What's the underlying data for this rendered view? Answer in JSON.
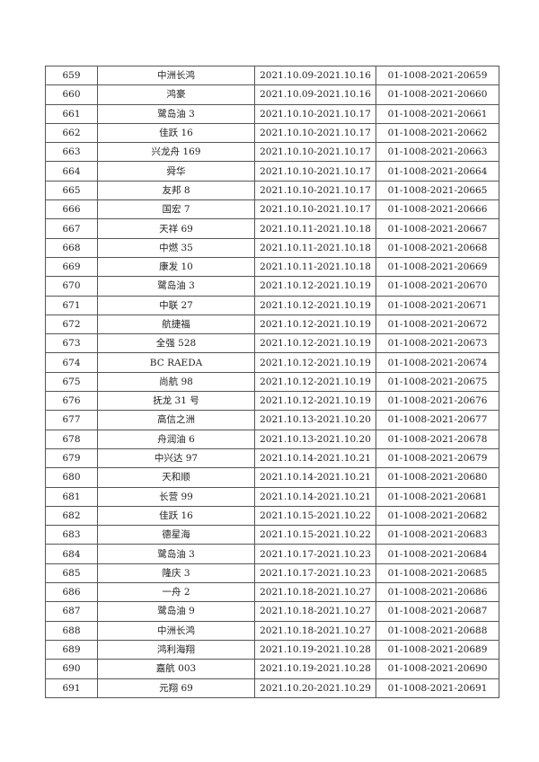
{
  "table": {
    "rows": [
      [
        "659",
        "中洲长鸿",
        "2021.10.09-2021.10.16",
        "01-1008-2021-20659"
      ],
      [
        "660",
        "鸿豪",
        "2021.10.09-2021.10.16",
        "01-1008-2021-20660"
      ],
      [
        "661",
        "鹭岛油 3",
        "2021.10.10-2021.10.17",
        "01-1008-2021-20661"
      ],
      [
        "662",
        "佳跃 16",
        "2021.10.10-2021.10.17",
        "01-1008-2021-20662"
      ],
      [
        "663",
        "兴龙舟 169",
        "2021.10.10-2021.10.17",
        "01-1008-2021-20663"
      ],
      [
        "664",
        "舜华",
        "2021.10.10-2021.10.17",
        "01-1008-2021-20664"
      ],
      [
        "665",
        "友邦 8",
        "2021.10.10-2021.10.17",
        "01-1008-2021-20665"
      ],
      [
        "666",
        "国宏 7",
        "2021.10.10-2021.10.17",
        "01-1008-2021-20666"
      ],
      [
        "667",
        "天祥 69",
        "2021.10.11-2021.10.18",
        "01-1008-2021-20667"
      ],
      [
        "668",
        "中燃 35",
        "2021.10.11-2021.10.18",
        "01-1008-2021-20668"
      ],
      [
        "669",
        "康发 10",
        "2021.10.11-2021.10.18",
        "01-1008-2021-20669"
      ],
      [
        "670",
        "鹭岛油 3",
        "2021.10.12-2021.10.19",
        "01-1008-2021-20670"
      ],
      [
        "671",
        "中联 27",
        "2021.10.12-2021.10.19",
        "01-1008-2021-20671"
      ],
      [
        "672",
        "航捷福",
        "2021.10.12-2021.10.19",
        "01-1008-2021-20672"
      ],
      [
        "673",
        "全强 528",
        "2021.10.12-2021.10.19",
        "01-1008-2021-20673"
      ],
      [
        "674",
        "BC RAEDA",
        "2021.10.12-2021.10.19",
        "01-1008-2021-20674"
      ],
      [
        "675",
        "尚航 98",
        "2021.10.12-2021.10.19",
        "01-1008-2021-20675"
      ],
      [
        "676",
        "抚龙 31 号",
        "2021.10.12-2021.10.19",
        "01-1008-2021-20676"
      ],
      [
        "677",
        "高信之洲",
        "2021.10.13-2021.10.20",
        "01-1008-2021-20677"
      ],
      [
        "678",
        "舟润油 6",
        "2021.10.13-2021.10.20",
        "01-1008-2021-20678"
      ],
      [
        "679",
        "中兴达 97",
        "2021.10.14-2021.10.21",
        "01-1008-2021-20679"
      ],
      [
        "680",
        "天和顺",
        "2021.10.14-2021.10.21",
        "01-1008-2021-20680"
      ],
      [
        "681",
        "长营 99",
        "2021.10.14-2021.10.21",
        "01-1008-2021-20681"
      ],
      [
        "682",
        "佳跃 16",
        "2021.10.15-2021.10.22",
        "01-1008-2021-20682"
      ],
      [
        "683",
        "德星海",
        "2021.10.15-2021.10.22",
        "01-1008-2021-20683"
      ],
      [
        "684",
        "鹭岛油 3",
        "2021.10.17-2021.10.23",
        "01-1008-2021-20684"
      ],
      [
        "685",
        "隆庆 3",
        "2021.10.17-2021.10.23",
        "01-1008-2021-20685"
      ],
      [
        "686",
        "一舟 2",
        "2021.10.18-2021.10.27",
        "01-1008-2021-20686"
      ],
      [
        "687",
        "鹭岛油 9",
        "2021.10.18-2021.10.27",
        "01-1008-2021-20687"
      ],
      [
        "688",
        "中洲长鸿",
        "2021.10.18-2021.10.27",
        "01-1008-2021-20688"
      ],
      [
        "689",
        "鸿利海翔",
        "2021.10.19-2021.10.28",
        "01-1008-2021-20689"
      ],
      [
        "690",
        "嘉航 003",
        "2021.10.19-2021.10.28",
        "01-1008-2021-20690"
      ],
      [
        "691",
        "元翔 69",
        "2021.10.20-2021.10.29",
        "01-1008-2021-20691"
      ]
    ]
  }
}
